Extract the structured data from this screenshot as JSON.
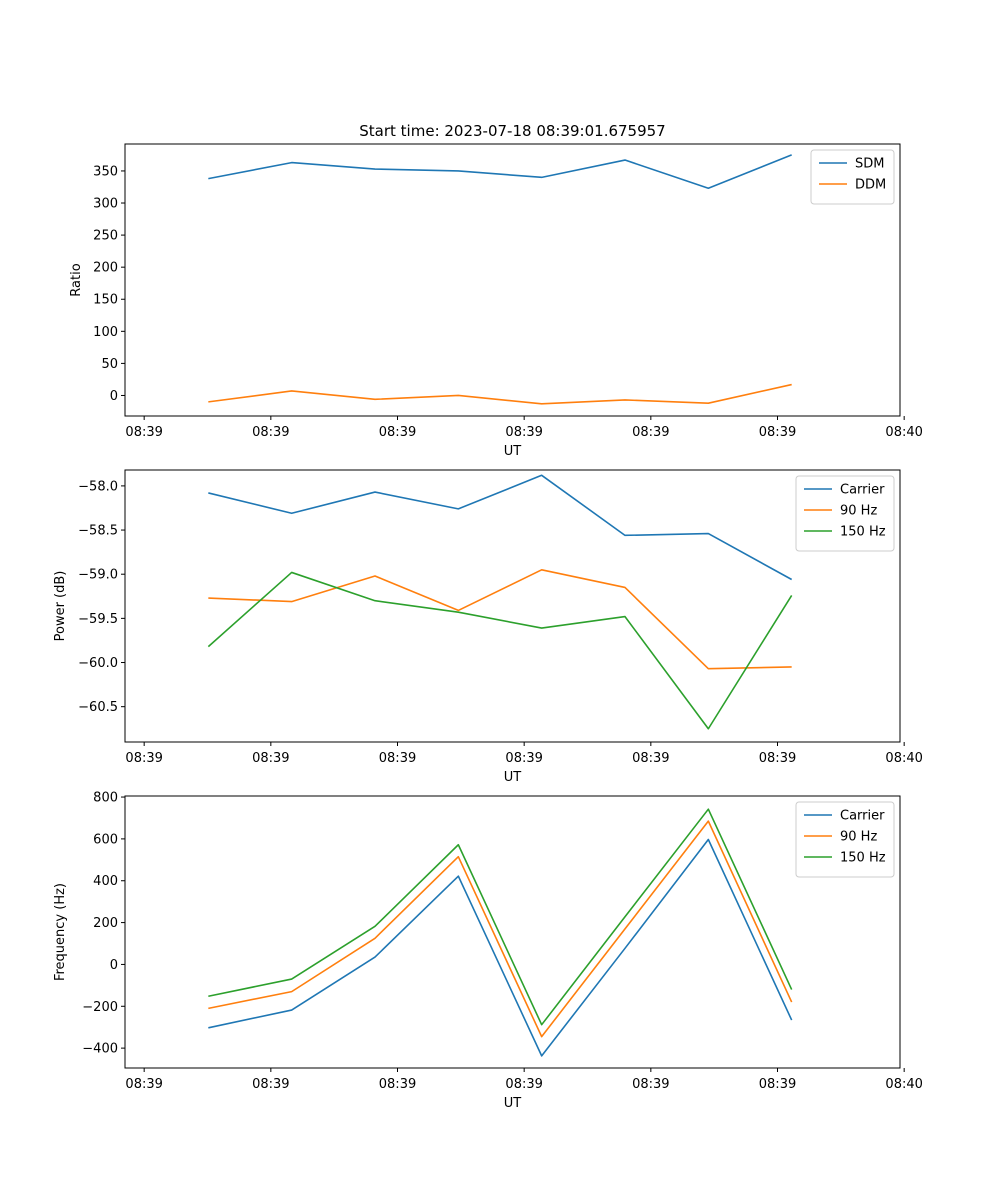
{
  "figure": {
    "title": "Start time: 2023-07-18 08:39:01.675957"
  },
  "colors": {
    "blue": "#1f77b4",
    "orange": "#ff7f0e",
    "green": "#2ca02c",
    "axis": "#000000",
    "legend_border": "#cccccc"
  },
  "chart_data": [
    {
      "type": "line",
      "title": "Start time: 2023-07-18 08:39:01.675957",
      "xlabel": "UT",
      "ylabel": "Ratio",
      "x_tick_labels": [
        "08:39",
        "08:39",
        "08:39",
        "08:39",
        "08:39",
        "08:39",
        "08:40"
      ],
      "x": [
        1,
        2,
        3,
        4,
        5,
        6,
        7,
        8
      ],
      "xlim": [
        0,
        9.3
      ],
      "x_ticks": [
        0.23,
        1.75,
        3.27,
        4.79,
        6.31,
        7.83,
        9.35
      ],
      "ylim": [
        -32,
        392
      ],
      "y_ticks": [
        0,
        50,
        100,
        150,
        200,
        250,
        300,
        350
      ],
      "y_tick_labels": [
        "0",
        "50",
        "100",
        "150",
        "200",
        "250",
        "300",
        "350"
      ],
      "legend_position": "top-right",
      "series": [
        {
          "name": "SDM",
          "color": "blue",
          "values": [
            338,
            363,
            353,
            350,
            340,
            367,
            323,
            375
          ]
        },
        {
          "name": "DDM",
          "color": "orange",
          "values": [
            -10,
            7,
            -6,
            0,
            -13,
            -7,
            -12,
            17
          ]
        }
      ]
    },
    {
      "type": "line",
      "title": "",
      "xlabel": "UT",
      "ylabel": "Power (dB)",
      "x_tick_labels": [
        "08:39",
        "08:39",
        "08:39",
        "08:39",
        "08:39",
        "08:39",
        "08:40"
      ],
      "x": [
        1,
        2,
        3,
        4,
        5,
        6,
        7,
        8
      ],
      "xlim": [
        0,
        9.3
      ],
      "x_ticks": [
        0.23,
        1.75,
        3.27,
        4.79,
        6.31,
        7.83,
        9.35
      ],
      "ylim": [
        -60.9,
        -57.82
      ],
      "y_ticks": [
        -58.0,
        -58.5,
        -59.0,
        -59.5,
        -60.0,
        -60.5
      ],
      "y_tick_labels": [
        "−58.0",
        "−58.5",
        "−59.0",
        "−59.5",
        "−60.0",
        "−60.5"
      ],
      "legend_position": "top-right",
      "series": [
        {
          "name": "Carrier",
          "color": "blue",
          "values": [
            -58.08,
            -58.31,
            -58.07,
            -58.26,
            -57.88,
            -58.56,
            -58.54,
            -59.06
          ]
        },
        {
          "name": "90 Hz",
          "color": "orange",
          "values": [
            -59.27,
            -59.31,
            -59.02,
            -59.41,
            -58.95,
            -59.15,
            -60.07,
            -60.05
          ]
        },
        {
          "name": "150 Hz",
          "color": "green",
          "values": [
            -59.82,
            -58.98,
            -59.3,
            -59.43,
            -59.61,
            -59.48,
            -60.75,
            -59.24
          ]
        }
      ]
    },
    {
      "type": "line",
      "title": "",
      "xlabel": "UT",
      "ylabel": "Frequency (Hz)",
      "x_tick_labels": [
        "08:39",
        "08:39",
        "08:39",
        "08:39",
        "08:39",
        "08:39",
        "08:40"
      ],
      "x": [
        1,
        2,
        3,
        4,
        5,
        6,
        7,
        8
      ],
      "xlim": [
        0,
        9.3
      ],
      "x_ticks": [
        0.23,
        1.75,
        3.27,
        4.79,
        6.31,
        7.83,
        9.35
      ],
      "ylim": [
        -495,
        805
      ],
      "y_ticks": [
        -400,
        -200,
        0,
        200,
        400,
        600,
        800
      ],
      "y_tick_labels": [
        "−400",
        "−200",
        "0",
        "200",
        "400",
        "600",
        "800"
      ],
      "legend_position": "top-right",
      "series": [
        {
          "name": "Carrier",
          "color": "blue",
          "values": [
            -303,
            -218,
            35,
            422,
            -437,
            77,
            597,
            -266
          ]
        },
        {
          "name": "90 Hz",
          "color": "orange",
          "values": [
            -210,
            -130,
            125,
            515,
            -345,
            170,
            685,
            -180
          ]
        },
        {
          "name": "150 Hz",
          "color": "green",
          "values": [
            -152,
            -70,
            182,
            572,
            -288,
            228,
            742,
            -120
          ]
        }
      ]
    }
  ]
}
